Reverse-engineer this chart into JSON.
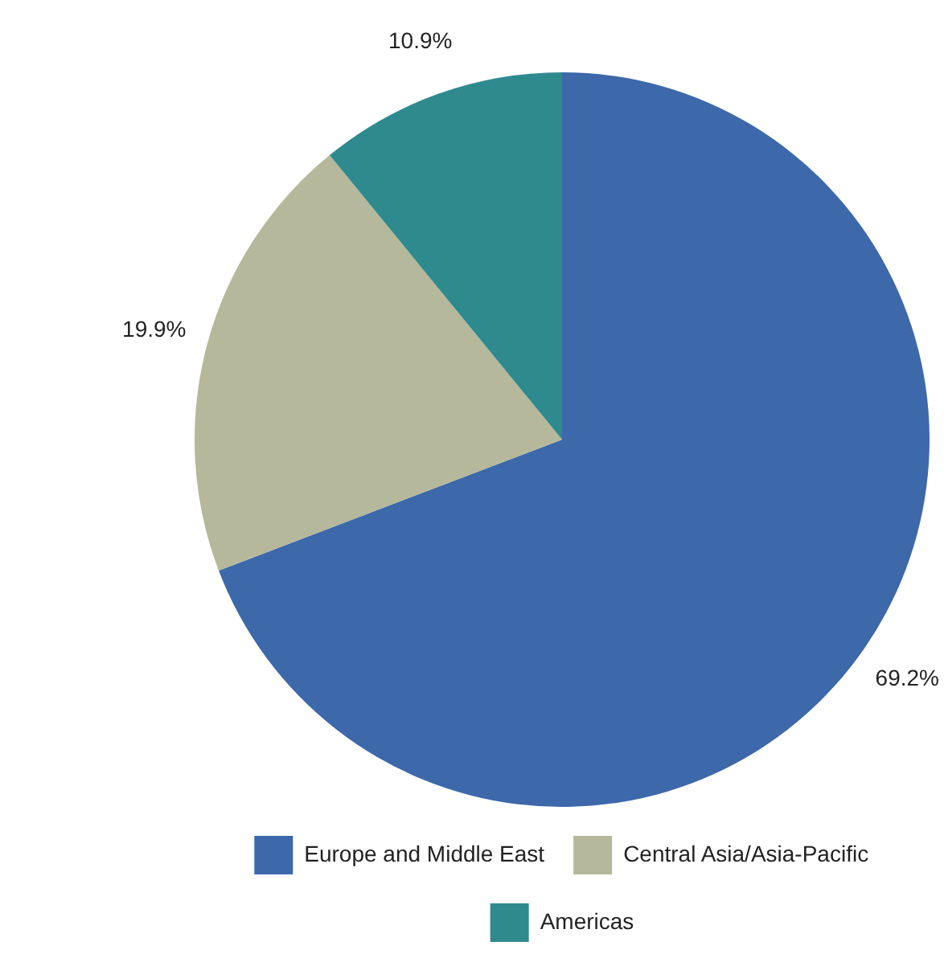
{
  "chart_data": {
    "type": "pie",
    "categories": [
      "Europe and Middle East",
      "Central Asia/Asia-Pacific",
      "Americas"
    ],
    "values": [
      69.2,
      19.9,
      10.9
    ],
    "colors": [
      "#3d68aa",
      "#b5b89a",
      "#2f8a8e"
    ],
    "value_labels": [
      "69.2%",
      "19.9%",
      "10.9%"
    ],
    "legend": "bottom"
  }
}
